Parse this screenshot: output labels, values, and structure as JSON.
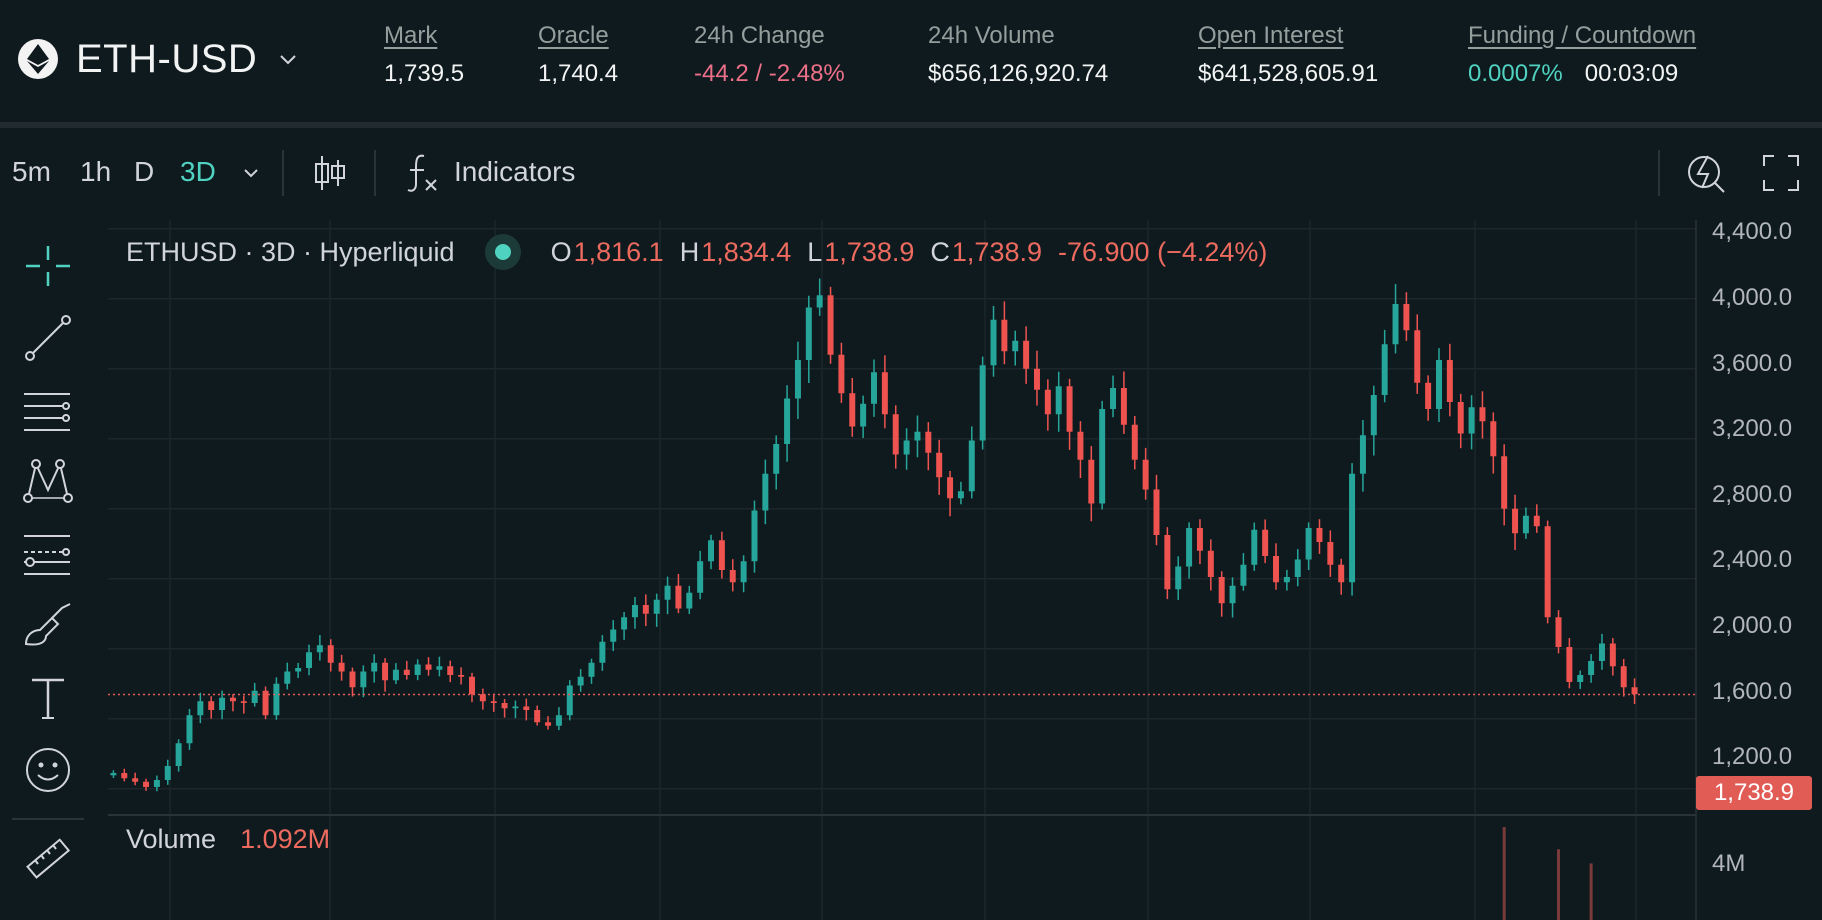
{
  "header": {
    "symbol": "ETH-USD",
    "stats": [
      {
        "label": "Mark",
        "value": "1,739.5"
      },
      {
        "label": "Oracle",
        "value": "1,740.4"
      },
      {
        "label": "24h Change",
        "value": "-44.2 / -2.48%"
      },
      {
        "label": "24h Volume",
        "value": "$656,126,920.74"
      },
      {
        "label": "Open Interest",
        "value": "$641,528,605.91"
      },
      {
        "label": "Funding / Countdown",
        "value": "0.0007%",
        "value2": "00:03:09"
      }
    ]
  },
  "toolbar": {
    "timeframes": [
      "5m",
      "1h",
      "D",
      "3D"
    ],
    "active_timeframe": "3D",
    "indicators_label": "Indicators"
  },
  "legend": {
    "title": "ETHUSD · 3D · Hyperliquid",
    "o_label": "O",
    "o": "1,816.1",
    "h_label": "H",
    "h": "1,834.4",
    "l_label": "L",
    "l": "1,738.9",
    "c_label": "C",
    "c": "1,738.9",
    "change": "-76.900 (−4.24%)"
  },
  "price_axis": {
    "ticks": [
      "4,400.0",
      "4,000.0",
      "3,600.0",
      "3,200.0",
      "2,800.0",
      "2,400.0",
      "2,000.0",
      "1,600.0",
      "1,200.0"
    ],
    "last_price": "1,738.9"
  },
  "volume": {
    "label": "Volume",
    "value": "1.092M",
    "tick": "4M"
  },
  "colors": {
    "up": "#26a69a",
    "down": "#ef5350",
    "accent": "#50d2c1",
    "negative_text": "#ed7088",
    "last_price_tag": "#e05c55"
  },
  "chart_data": {
    "type": "line",
    "title": "ETHUSD · 3D · Hyperliquid",
    "xlabel": "",
    "ylabel": "",
    "ylim": [
      1050,
      4450
    ],
    "last_close": 1738.9,
    "series": [
      {
        "values": [
          1290,
          1260,
          1240,
          1210,
          1250,
          1330,
          1460,
          1620,
          1700,
          1650,
          1720,
          1700,
          1690,
          1760,
          1620,
          1800,
          1870,
          1890,
          1980,
          2020,
          1920,
          1870,
          1780,
          1870,
          1920,
          1820,
          1880,
          1850,
          1910,
          1880,
          1900,
          1850,
          1840,
          1740,
          1700,
          1690,
          1660,
          1670,
          1650,
          1580,
          1560,
          1620,
          1790,
          1840,
          1920,
          2040,
          2110,
          2180,
          2250,
          2200,
          2280,
          2360,
          2230,
          2320,
          2500,
          2620,
          2450,
          2380,
          2500,
          2790,
          3000,
          3170,
          3430,
          3650,
          3950,
          4020,
          3680,
          3460,
          3270,
          3400,
          3580,
          3340,
          3110,
          3190,
          3240,
          3120,
          2980,
          2860,
          2900,
          3190,
          3620,
          3880,
          3700,
          3760,
          3600,
          3480,
          3340,
          3500,
          3240,
          3080,
          2830,
          3370,
          3490,
          3280,
          3080,
          2910,
          2650,
          2340,
          2470,
          2690,
          2560,
          2410,
          2260,
          2360,
          2480,
          2680,
          2530,
          2380,
          2410,
          2510,
          2690,
          2610,
          2480,
          2380,
          3000,
          3220,
          3450,
          3740,
          3970,
          3820,
          3520,
          3370,
          3650,
          3410,
          3230,
          3380,
          3300,
          3100,
          2800,
          2660,
          2760,
          2700,
          2180,
          2010,
          1810,
          1850,
          1930,
          2030,
          1900,
          1780,
          1740
        ]
      }
    ],
    "volume_ylim": [
      0,
      4700000
    ],
    "volume_spikes": [
      {
        "index": 128,
        "value": 4600000
      },
      {
        "index": 133,
        "value": 3500000
      },
      {
        "index": 136,
        "value": 2800000
      }
    ]
  }
}
